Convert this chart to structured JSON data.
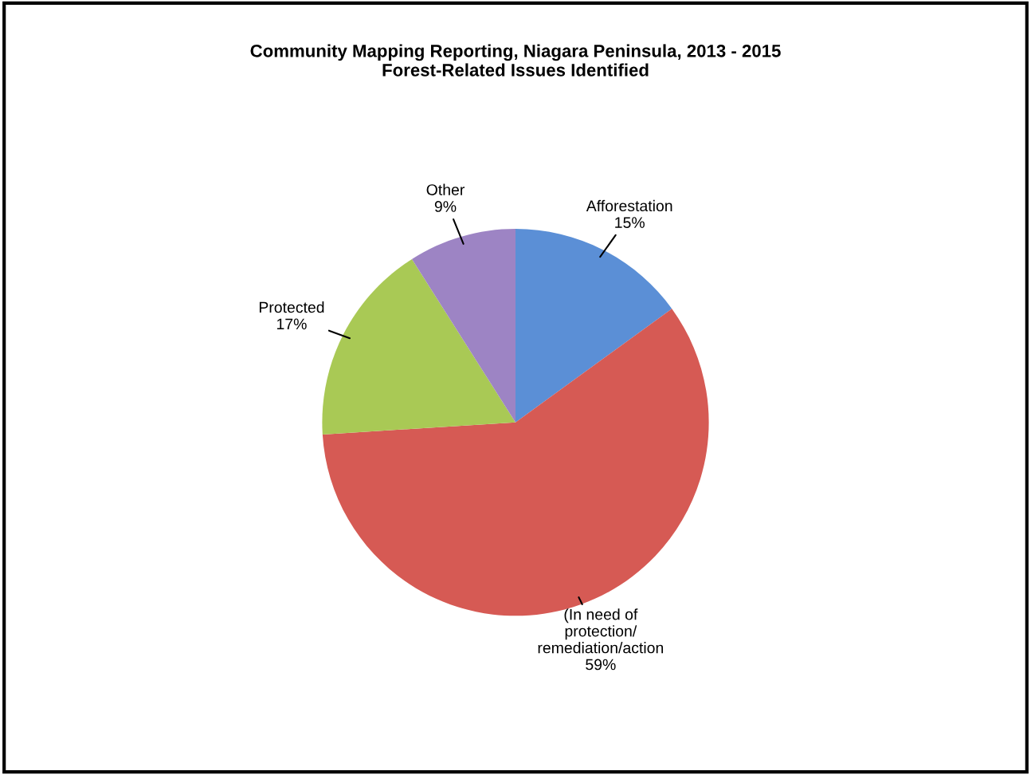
{
  "chart_data": {
    "type": "pie",
    "title": "Community Mapping Reporting, Niagara Peninsula, 2013 - 2015",
    "subtitle": "Forest-Related Issues Identified",
    "categories": [
      "Afforestation",
      "(In need of\nprotection/\nremediation/action",
      "Protected",
      "Other"
    ],
    "values": [
      15,
      59,
      17,
      9
    ],
    "value_labels": [
      "15%",
      "59%",
      "17%",
      "9%"
    ],
    "colors": [
      "#5b8fd6",
      "#d65a54",
      "#a9c955",
      "#9d84c4"
    ]
  }
}
